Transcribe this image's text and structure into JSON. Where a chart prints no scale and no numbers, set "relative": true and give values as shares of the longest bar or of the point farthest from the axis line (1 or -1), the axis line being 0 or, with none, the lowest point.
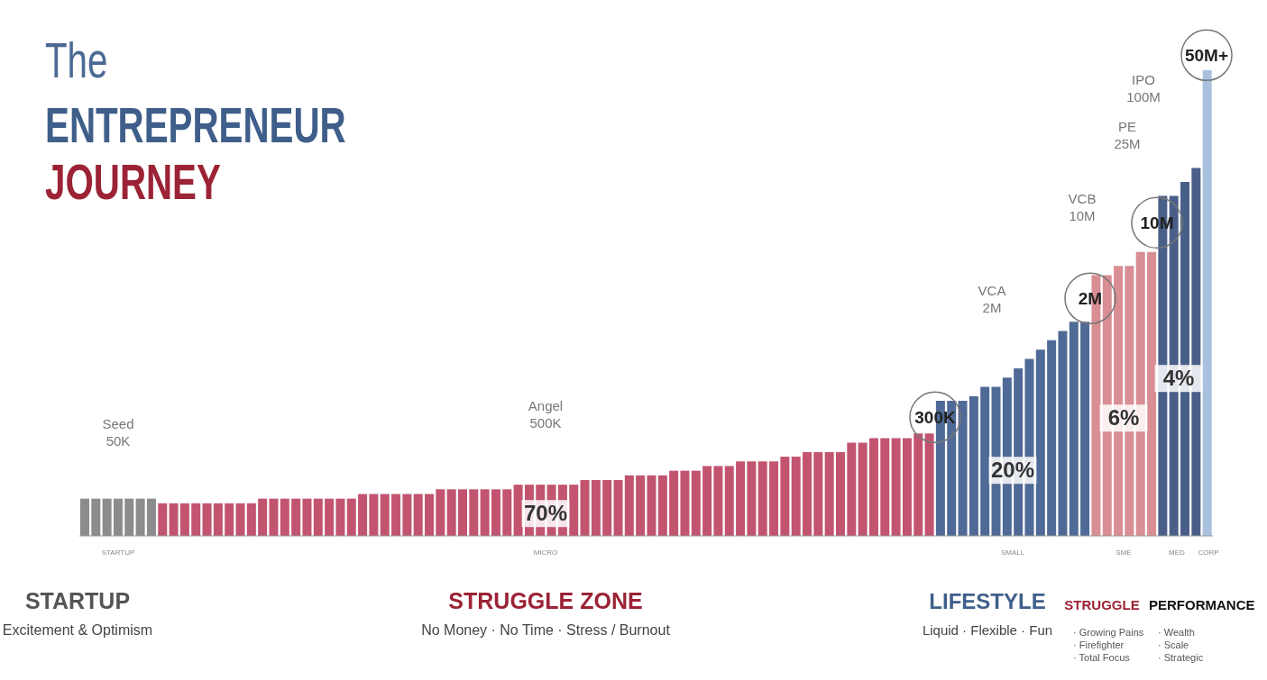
{
  "chart_data": {
    "type": "bar",
    "relative": true,
    "title": "The ENTREPRENEUR JOURNEY",
    "categories": [
      null,
      null,
      null,
      null,
      null,
      null,
      null,
      null,
      null,
      null,
      null,
      null,
      null,
      null,
      null,
      null,
      null,
      null,
      null,
      null,
      null,
      null,
      null,
      null,
      null,
      null,
      null,
      null,
      null,
      null,
      null,
      null,
      null,
      null,
      null,
      null,
      null,
      null,
      null,
      null,
      null,
      null,
      null,
      null,
      null,
      null,
      null,
      null,
      null,
      null,
      null,
      null,
      null,
      null,
      null,
      null,
      null,
      null,
      null,
      null,
      null,
      null,
      null,
      null,
      null,
      null,
      null,
      null,
      null,
      null,
      null,
      null,
      null,
      null,
      null,
      null,
      null,
      null,
      null,
      null,
      null,
      null,
      null,
      null,
      null,
      null,
      null,
      null,
      null,
      null,
      null,
      null,
      null,
      null,
      null,
      null,
      null,
      null,
      null,
      null,
      null,
      null
    ],
    "values": [
      0.08,
      0.08,
      0.08,
      0.08,
      0.08,
      0.08,
      0.08,
      0.07,
      0.07,
      0.07,
      0.07,
      0.07,
      0.07,
      0.07,
      0.07,
      0.07,
      0.08,
      0.08,
      0.08,
      0.08,
      0.08,
      0.08,
      0.08,
      0.08,
      0.08,
      0.09,
      0.09,
      0.09,
      0.09,
      0.09,
      0.09,
      0.09,
      0.1,
      0.1,
      0.1,
      0.1,
      0.1,
      0.1,
      0.1,
      0.11,
      0.11,
      0.11,
      0.11,
      0.11,
      0.11,
      0.12,
      0.12,
      0.12,
      0.12,
      0.13,
      0.13,
      0.13,
      0.13,
      0.14,
      0.14,
      0.14,
      0.15,
      0.15,
      0.15,
      0.16,
      0.16,
      0.16,
      0.16,
      0.17,
      0.17,
      0.18,
      0.18,
      0.18,
      0.18,
      0.2,
      0.2,
      0.21,
      0.21,
      0.21,
      0.21,
      0.22,
      0.22,
      0.29,
      0.29,
      0.29,
      0.3,
      0.32,
      0.32,
      0.34,
      0.36,
      0.38,
      0.4,
      0.42,
      0.44,
      0.46,
      0.46,
      0.56,
      0.56,
      0.58,
      0.58,
      0.61,
      0.61,
      0.73,
      0.73,
      0.76,
      0.79,
      1
    ],
    "colors": [
      "#8c8c8c",
      "#8c8c8c",
      "#8c8c8c",
      "#8c8c8c",
      "#8c8c8c",
      "#8c8c8c",
      "#8c8c8c",
      "#c25470",
      "#c25470",
      "#c25470",
      "#c25470",
      "#c25470",
      "#c25470",
      "#c25470",
      "#c25470",
      "#c25470",
      "#c25470",
      "#c25470",
      "#c25470",
      "#c25470",
      "#c25470",
      "#c25470",
      "#c25470",
      "#c25470",
      "#c25470",
      "#c25470",
      "#c25470",
      "#c25470",
      "#c25470",
      "#c25470",
      "#c25470",
      "#c25470",
      "#c25470",
      "#c25470",
      "#c25470",
      "#c25470",
      "#c25470",
      "#c25470",
      "#c25470",
      "#c25470",
      "#c25470",
      "#c25470",
      "#c25470",
      "#c25470",
      "#c25470",
      "#c25470",
      "#c25470",
      "#c25470",
      "#c25470",
      "#c25470",
      "#c25470",
      "#c25470",
      "#c25470",
      "#c25470",
      "#c25470",
      "#c25470",
      "#c25470",
      "#c25470",
      "#c25470",
      "#c25470",
      "#c25470",
      "#c25470",
      "#c25470",
      "#c25470",
      "#c25470",
      "#c25470",
      "#c25470",
      "#c25470",
      "#c25470",
      "#c25470",
      "#c25470",
      "#c25470",
      "#c25470",
      "#c25470",
      "#c25470",
      "#c25470",
      "#c25470",
      "#4f6a96",
      "#4f6a96",
      "#4f6a96",
      "#4f6a96",
      "#4f6a96",
      "#4f6a96",
      "#4f6a96",
      "#4f6a96",
      "#4f6a96",
      "#4f6a96",
      "#4f6a96",
      "#4f6a96",
      "#4f6a96",
      "#4f6a96",
      "#d98e94",
      "#d98e94",
      "#d98e94",
      "#d98e94",
      "#d98e94",
      "#d98e94",
      "#4a5f88",
      "#4a5f88",
      "#4a5f88",
      "#4a5f88",
      "#a9c0de"
    ],
    "annotations": [
      "Seed\n50K",
      "Angel\n500K",
      "VCA\n2M",
      "VCB\n10M",
      "PE\n25M",
      "IPO\n100M",
      "300K",
      "2M",
      "10M",
      "50M+",
      "70%",
      "20%",
      "6%",
      "4%",
      "STARTUP",
      "MICRO",
      "SMALL",
      "SME",
      "MED",
      "CORP",
      "STARTUP",
      "Excitement & Optimism",
      "STRUGGLE ZONE",
      "No Money · No Time · Stress / Burnout",
      "LIFESTYLE",
      "Liquid · Flexible · Fun",
      "STRUGGLE",
      "· Growing Pains\n· Firefighter\n· Total Focus",
      "PERFORMANCE",
      "· Wealth\n· Scale\n· Strategic"
    ]
  }
}
